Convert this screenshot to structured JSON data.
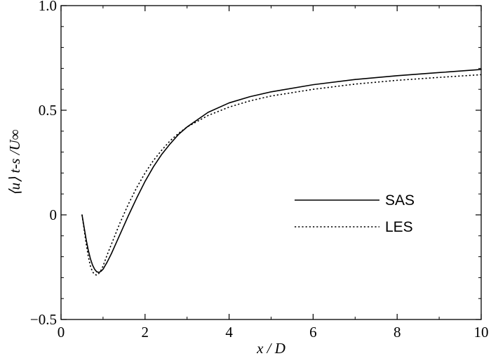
{
  "chart_data": {
    "type": "line",
    "xlabel": "x / D",
    "ylabel": "⟨u⟩ t-s /U∞",
    "xlim": [
      0,
      10
    ],
    "ylim": [
      -0.5,
      1.0
    ],
    "x_ticks": [
      0,
      2,
      4,
      6,
      8,
      10
    ],
    "x_tick_labels": [
      "0",
      "2",
      "4",
      "6",
      "8",
      "10"
    ],
    "y_ticks": [
      -0.5,
      0,
      0.5,
      1.0
    ],
    "y_tick_labels": [
      "−0.5",
      "0",
      "0.5",
      "1.0"
    ],
    "grid": false,
    "legend_position": "center-right",
    "series": [
      {
        "name": "SAS",
        "style": "solid",
        "color": "#000000",
        "x": [
          0.5,
          0.55,
          0.6,
          0.65,
          0.7,
          0.75,
          0.8,
          0.85,
          0.9,
          0.95,
          1.0,
          1.1,
          1.2,
          1.3,
          1.4,
          1.5,
          1.6,
          1.8,
          2.0,
          2.2,
          2.4,
          2.6,
          2.8,
          3.0,
          3.5,
          4.0,
          4.5,
          5.0,
          6.0,
          7.0,
          8.0,
          9.0,
          10.0
        ],
        "y": [
          0.0,
          -0.06,
          -0.12,
          -0.17,
          -0.21,
          -0.24,
          -0.26,
          -0.272,
          -0.275,
          -0.27,
          -0.26,
          -0.225,
          -0.185,
          -0.14,
          -0.095,
          -0.05,
          -0.005,
          0.08,
          0.16,
          0.23,
          0.29,
          0.34,
          0.385,
          0.42,
          0.49,
          0.535,
          0.565,
          0.588,
          0.622,
          0.647,
          0.665,
          0.68,
          0.695
        ]
      },
      {
        "name": "LES",
        "style": "dotted",
        "color": "#000000",
        "x": [
          0.5,
          0.55,
          0.6,
          0.65,
          0.7,
          0.75,
          0.8,
          0.85,
          0.9,
          0.95,
          1.0,
          1.1,
          1.2,
          1.3,
          1.4,
          1.5,
          1.6,
          1.8,
          2.0,
          2.2,
          2.4,
          2.6,
          2.8,
          3.0,
          3.5,
          4.0,
          4.5,
          5.0,
          6.0,
          7.0,
          8.0,
          9.0,
          10.0
        ],
        "y": [
          0.0,
          -0.07,
          -0.14,
          -0.2,
          -0.245,
          -0.272,
          -0.285,
          -0.288,
          -0.28,
          -0.265,
          -0.245,
          -0.19,
          -0.14,
          -0.09,
          -0.04,
          0.005,
          0.05,
          0.13,
          0.2,
          0.26,
          0.31,
          0.355,
          0.39,
          0.42,
          0.475,
          0.515,
          0.545,
          0.568,
          0.6,
          0.625,
          0.643,
          0.657,
          0.67
        ]
      }
    ]
  }
}
